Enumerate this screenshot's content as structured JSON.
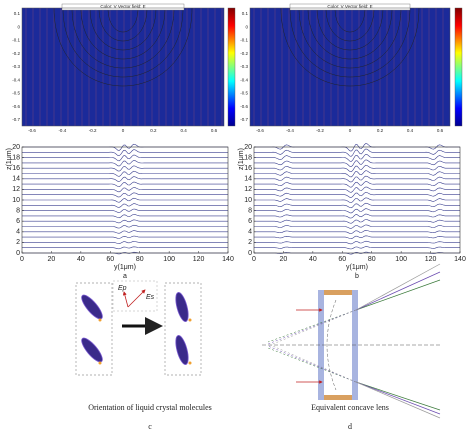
{
  "panel_a": {
    "heatmap": {
      "title": "Color: V  Vector field: E",
      "xticks": [
        "-0.6",
        "-0.4",
        "-0.2",
        "0",
        "0.2",
        "0.4",
        "0.6"
      ],
      "yticks": [
        "0.1",
        "0",
        "-0.1",
        "-0.2",
        "-0.3",
        "-0.4",
        "-0.5",
        "-0.6",
        "-0.7"
      ]
    },
    "plot": {
      "ylabel": "z(1μm)",
      "xlabel": "y(1μm)",
      "xticks": [
        0,
        20,
        40,
        60,
        80,
        100,
        120,
        140
      ],
      "yticks": [
        0,
        2,
        4,
        6,
        8,
        10,
        12,
        14,
        16,
        18,
        20
      ]
    },
    "label": "a"
  },
  "panel_b": {
    "heatmap": {
      "title": "Color: V  Vector field: E",
      "xticks": [
        "-0.6",
        "-0.4",
        "-0.2",
        "0",
        "0.2",
        "0.4",
        "0.6"
      ],
      "yticks": [
        "0.1",
        "0",
        "-0.1",
        "-0.2",
        "-0.3",
        "-0.4",
        "-0.5",
        "-0.6",
        "-0.7"
      ]
    },
    "plot": {
      "ylabel": "z(1μm)",
      "xlabel": "y(1μm)",
      "xticks": [
        0,
        20,
        40,
        60,
        80,
        100,
        120,
        140
      ],
      "yticks": [
        0,
        2,
        4,
        6,
        8,
        10,
        12,
        14,
        16,
        18,
        20
      ]
    },
    "label": "b"
  },
  "panel_c": {
    "ep": "Ep",
    "es": "Es",
    "caption": "Orientation of liquid crystal molecules",
    "label": "c"
  },
  "panel_d": {
    "caption": "Equivalent concave lens",
    "label": "d"
  }
}
